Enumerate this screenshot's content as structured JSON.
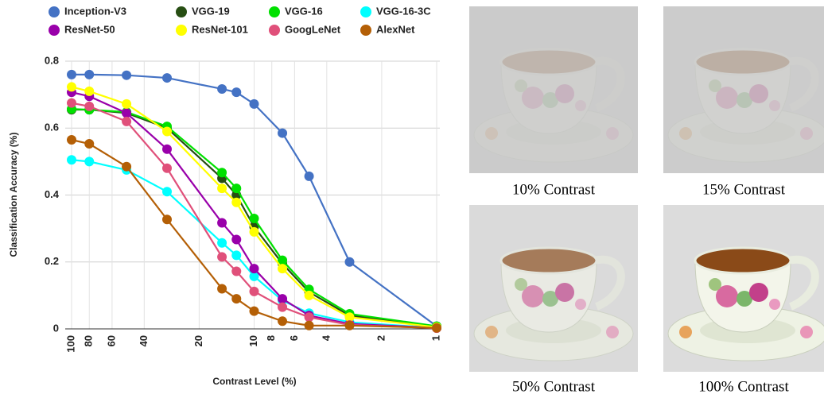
{
  "chart_data": {
    "type": "line",
    "xlabel": "Contrast Level (%)",
    "ylabel": "Classification Accuracy (%)",
    "x": [
      100,
      80,
      50,
      30,
      15,
      12.5,
      10,
      7,
      5,
      3,
      1
    ],
    "xlim": [
      100,
      1
    ],
    "xscale": "log",
    "xticks": [
      100,
      80,
      60,
      40,
      20,
      10,
      8,
      6,
      4,
      2,
      1
    ],
    "ylim": [
      0,
      0.8
    ],
    "yticks": [
      0,
      0.2,
      0.4,
      0.6,
      0.8
    ],
    "grid": true,
    "legend": "top",
    "series": [
      {
        "name": "Inception-V3",
        "color": "#4472c4",
        "values": [
          0.76,
          0.76,
          0.758,
          0.75,
          0.717,
          0.707,
          0.672,
          0.585,
          0.456,
          0.2,
          0.008
        ]
      },
      {
        "name": "VGG-19",
        "color": "#274e13",
        "values": [
          0.655,
          0.655,
          0.645,
          0.6,
          0.45,
          0.4,
          0.305,
          0.195,
          0.11,
          0.04,
          0.005
        ]
      },
      {
        "name": "VGG-16",
        "color": "#00e000",
        "values": [
          0.657,
          0.655,
          0.648,
          0.605,
          0.467,
          0.42,
          0.33,
          0.205,
          0.118,
          0.045,
          0.008
        ]
      },
      {
        "name": "VGG-16-3C",
        "color": "#00ffff",
        "values": [
          0.505,
          0.5,
          0.475,
          0.41,
          0.257,
          0.22,
          0.157,
          0.085,
          0.047,
          0.02,
          0.003
        ]
      },
      {
        "name": "ResNet-50",
        "color": "#9900aa",
        "values": [
          0.707,
          0.695,
          0.645,
          0.537,
          0.317,
          0.267,
          0.18,
          0.09,
          0.04,
          0.015,
          0.003
        ]
      },
      {
        "name": "ResNet-101",
        "color": "#ffff00",
        "values": [
          0.723,
          0.71,
          0.672,
          0.59,
          0.42,
          0.378,
          0.29,
          0.18,
          0.1,
          0.035,
          0.005
        ]
      },
      {
        "name": "GoogLeNet",
        "color": "#e0507a",
        "values": [
          0.675,
          0.665,
          0.62,
          0.48,
          0.215,
          0.172,
          0.112,
          0.065,
          0.035,
          0.012,
          0.002
        ]
      },
      {
        "name": "AlexNet",
        "color": "#b45f06",
        "values": [
          0.565,
          0.553,
          0.485,
          0.327,
          0.12,
          0.09,
          0.053,
          0.023,
          0.01,
          0.01,
          0.003
        ]
      }
    ]
  },
  "panels": [
    {
      "caption": "10% Contrast"
    },
    {
      "caption": "15% Contrast"
    },
    {
      "caption": "50% Contrast"
    },
    {
      "caption": "100% Contrast"
    }
  ]
}
